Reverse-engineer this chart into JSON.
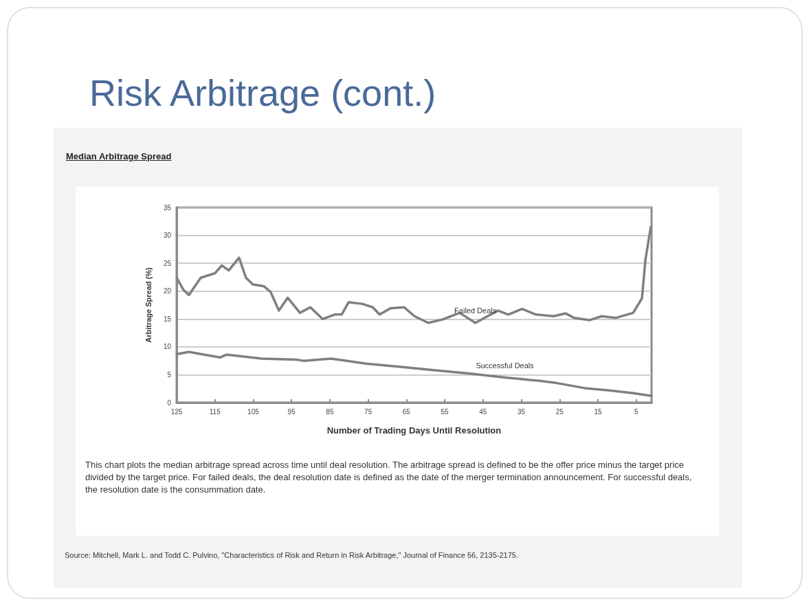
{
  "chart_data": {
    "type": "line",
    "title": "Risk Arbitrage (cont.)",
    "subtitle": "Median Arbitrage Spread",
    "xlabel": "Number of Trading Days Until Resolution",
    "ylabel": "Arbitrage Spread (%)",
    "xlim": [
      125,
      1
    ],
    "xticks": [
      125,
      115,
      105,
      95,
      85,
      75,
      65,
      55,
      45,
      35,
      25,
      15,
      5
    ],
    "ylim": [
      0,
      35
    ],
    "yticks": [
      0,
      5,
      10,
      15,
      20,
      25,
      30,
      35
    ],
    "grid": "y",
    "legend": false,
    "marker": "none",
    "line_style": "solid",
    "series": [
      {
        "name": "Failed Deals",
        "color": "#7f7f7f",
        "x": [
          125,
          123.2,
          121.8,
          118.7,
          115,
          113.2,
          111.4,
          108.7,
          106.9,
          105.1,
          102.3,
          100.5,
          98.3,
          96,
          92.8,
          90.1,
          86.9,
          83.7,
          81.9,
          80.1,
          76.5,
          73.8,
          72,
          69.2,
          65.6,
          62.9,
          59.3,
          55.6,
          51.1,
          47,
          43.8,
          41.1,
          38.4,
          34.8,
          31.2,
          26.6,
          23.5,
          21.2,
          17.1,
          14,
          10.3,
          5.8,
          3.5,
          2.6,
          1.2
        ],
        "values": [
          22.4,
          20.2,
          19.3,
          22.4,
          23.2,
          24.6,
          23.7,
          26,
          22.4,
          21.2,
          20.9,
          19.9,
          16.5,
          18.8,
          16.1,
          17.1,
          15,
          15.8,
          15.8,
          18,
          17.7,
          17.1,
          15.8,
          16.9,
          17.1,
          15.5,
          14.3,
          14.9,
          16.1,
          14.3,
          15.5,
          16.5,
          15.8,
          16.8,
          15.8,
          15.5,
          16,
          15.2,
          14.8,
          15.5,
          15.2,
          16.1,
          18.7,
          25.6,
          31.5
        ]
      },
      {
        "name": "Successful Deals",
        "color": "#7f7f7f",
        "x": [
          125,
          121.8,
          113.7,
          111.9,
          102.8,
          93.7,
          91.9,
          84.7,
          75.6,
          66.5,
          57.5,
          48.4,
          39.3,
          30.3,
          25.7,
          18.5,
          12.1,
          5.8,
          1
        ],
        "values": [
          8.7,
          9.1,
          8.1,
          8.6,
          7.9,
          7.7,
          7.5,
          7.9,
          7,
          6.4,
          5.8,
          5.2,
          4.5,
          3.9,
          3.5,
          2.6,
          2.2,
          1.7,
          1.2
        ]
      }
    ],
    "annotations": [
      "This chart plots the median arbitrage spread across time until deal resolution. The arbitrage spread is defined to be the offer price minus the target price divided by the target price. For failed deals, the deal resolution date is defined as the date of the merger termination announcement. For successful deals, the resolution date is the consummation date.",
      "Source: Mitchell, Mark L. and Todd C. Pulvino, \"Characteristics of Risk and Return in Risk Arbitrage,\" Journal of Finance 56, 2135-2175."
    ]
  }
}
